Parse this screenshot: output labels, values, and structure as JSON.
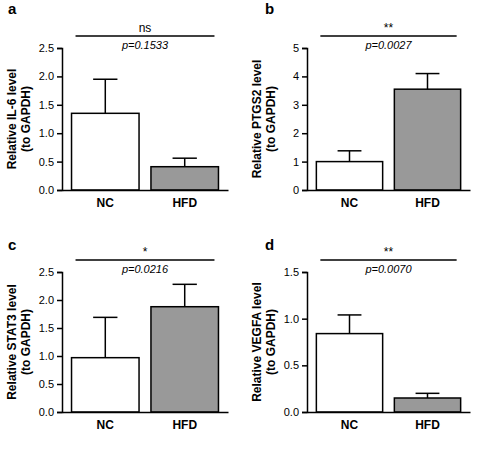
{
  "chart_data": [
    {
      "type": "bar",
      "title": "a",
      "y_label": [
        "Relative IL-6 level",
        "(to GAPDH)"
      ],
      "categories": [
        "NC",
        "HFD"
      ],
      "values": [
        1.35,
        0.41
      ],
      "errors": [
        0.6,
        0.15
      ],
      "colors": [
        "#ffffff",
        "#999999"
      ],
      "ylim": [
        0,
        2.5
      ],
      "yticks": [
        {
          "value": 0,
          "label": "0.0"
        },
        0.5,
        {
          "value": 1,
          "label": "1.0"
        },
        1.5,
        {
          "value": 2,
          "label": "2.0"
        },
        2.5
      ],
      "annotations": [
        "ns",
        "p=0.1533"
      ]
    },
    {
      "type": "bar",
      "title": "b",
      "y_label": [
        "Relative PTGS2 level",
        "(to GAPDH)"
      ],
      "categories": [
        "NC",
        "HFD"
      ],
      "values": [
        1.0,
        3.55
      ],
      "errors": [
        0.38,
        0.55
      ],
      "colors": [
        "#ffffff",
        "#999999"
      ],
      "ylim": [
        0,
        5
      ],
      "yticks": [
        0,
        1,
        2,
        3,
        4,
        5
      ],
      "annotations": [
        "**",
        "p=0.0027"
      ]
    },
    {
      "type": "bar",
      "title": "c",
      "y_label": [
        "Relative STAT3 level",
        "(to GAPDH)"
      ],
      "categories": [
        "NC",
        "HFD"
      ],
      "values": [
        0.97,
        1.88
      ],
      "errors": [
        0.72,
        0.4
      ],
      "colors": [
        "#ffffff",
        "#999999"
      ],
      "ylim": [
        0,
        2.5
      ],
      "yticks": [
        {
          "value": 0,
          "label": "0.0"
        },
        0.5,
        {
          "value": 1,
          "label": "1.0"
        },
        1.5,
        {
          "value": 2,
          "label": "2.0"
        },
        2.5
      ],
      "annotations": [
        "*",
        "p=0.0216"
      ]
    },
    {
      "type": "bar",
      "title": "d",
      "y_label": [
        "Relative VEGFA level",
        "(to GAPDH)"
      ],
      "categories": [
        "NC",
        "HFD"
      ],
      "values": [
        0.84,
        0.15
      ],
      "errors": [
        0.2,
        0.05
      ],
      "colors": [
        "#ffffff",
        "#999999"
      ],
      "ylim": [
        0,
        1.5
      ],
      "yticks": [
        {
          "value": 0,
          "label": "0.0"
        },
        0.5,
        {
          "value": 1,
          "label": "1.0"
        },
        1.5
      ],
      "annotations": [
        "**",
        "p=0.0070"
      ]
    }
  ]
}
